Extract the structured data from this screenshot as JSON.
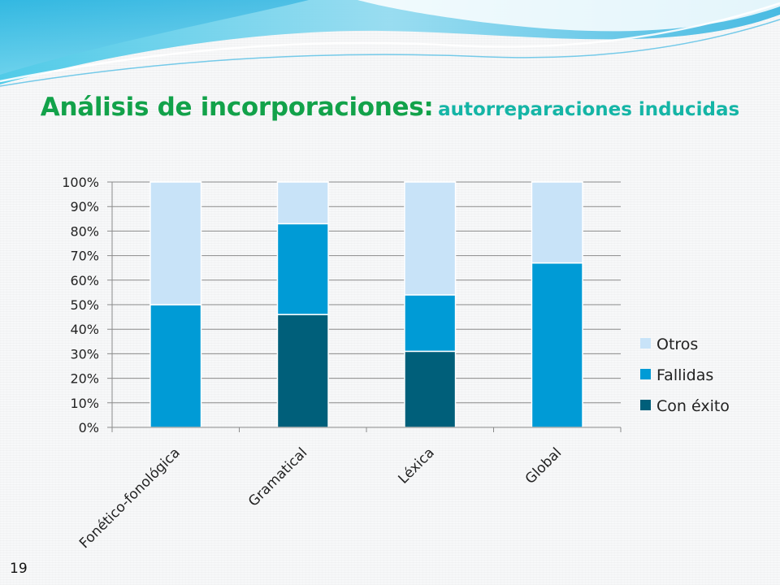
{
  "slide": {
    "title_main": "Análisis de incorporaciones:",
    "title_sub": "autorreparaciones inducidas",
    "number": "19"
  },
  "colors": {
    "con_exito": "#005f7a",
    "fallidas": "#009bd6",
    "otros": "#c8e3f8",
    "title_main": "#12a24a",
    "title_sub": "#15b5a6"
  },
  "chart_data": {
    "type": "bar",
    "stacked": true,
    "categories": [
      "Fonético-fonológica",
      "Gramatical",
      "Léxica",
      "Global"
    ],
    "series": [
      {
        "name": "Con éxito",
        "color": "#005f7a",
        "values": [
          0,
          46,
          31,
          0
        ]
      },
      {
        "name": "Fallidas",
        "color": "#009bd6",
        "values": [
          50,
          37,
          23,
          67
        ]
      },
      {
        "name": "Otros",
        "color": "#c8e3f8",
        "values": [
          50,
          17,
          46,
          33
        ]
      }
    ],
    "y_ticks": [
      "0%",
      "10%",
      "20%",
      "30%",
      "40%",
      "50%",
      "60%",
      "70%",
      "80%",
      "90%",
      "100%"
    ],
    "ylim": [
      0,
      100
    ],
    "grid": true,
    "legend_position": "right",
    "legend_order": [
      "Otros",
      "Fallidas",
      "Con éxito"
    ],
    "x_label_rotation": -45
  }
}
